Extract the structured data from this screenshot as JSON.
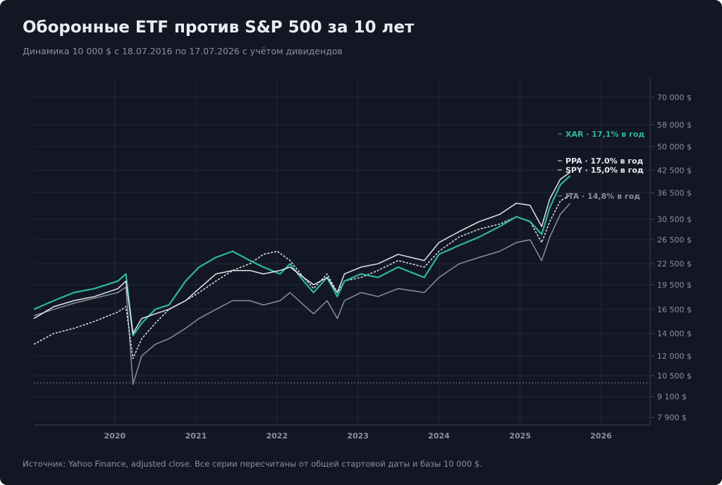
{
  "title": "Оборонные ETF против S&P 500 за 10 лет",
  "subtitle": "Динамика 10 000 $ с 18.07.2016 по 17.07.2026 с учётом дивидендов",
  "source": "Источник: Yahoo Finance, adjusted close. Все серии пересчитаны от общей стартовой даты и базы 10 000 $.",
  "chart_data": {
    "type": "line",
    "title": "Оборонные ETF против S&P 500 за 10 лет",
    "subtitle": "Динамика 10 000 $ с 18.07.2016 по 17.07.2026 с учётом дивидендов",
    "y_scale": "log",
    "ylim": [
      7500,
      80000
    ],
    "xlim": [
      "2019-01-01",
      "2026-08-10"
    ],
    "y_ticks": [
      7900,
      9100,
      10500,
      12000,
      14000,
      16500,
      19500,
      22500,
      26500,
      30500,
      36500,
      42500,
      50000,
      58000,
      70000
    ],
    "y_tick_labels": [
      "7 900 $",
      "9 100 $",
      "10 500 $",
      "12 000 $",
      "14 000 $",
      "16 500 $",
      "19 500 $",
      "22 500 $",
      "26 500 $",
      "30 500 $",
      "36 500 $",
      "42 500 $",
      "50 000 $",
      "58 000 $",
      "70 000 $"
    ],
    "x_ticks": [
      "2020-01-01",
      "2021-01-01",
      "2022-01-01",
      "2023-01-01",
      "2024-01-01",
      "2025-01-01",
      "2026-01-01"
    ],
    "x_tick_labels": [
      "2020",
      "2021",
      "2022",
      "2023",
      "2024",
      "2025",
      "2026"
    ],
    "grid": true,
    "reference_line": {
      "y": 10000,
      "style": "dotted"
    },
    "series": [
      {
        "name": "XAR",
        "label": "XAR · 17,1% в год",
        "color": "#2fb5a0",
        "style": "solid",
        "x": [
          "2019-01-01",
          "2019-04-01",
          "2019-07-01",
          "2019-10-01",
          "2020-01-15",
          "2020-02-20",
          "2020-03-23",
          "2020-05-01",
          "2020-07-01",
          "2020-09-01",
          "2020-11-15",
          "2021-01-15",
          "2021-04-01",
          "2021-06-15",
          "2021-09-01",
          "2021-11-01",
          "2022-01-15",
          "2022-03-01",
          "2022-05-01",
          "2022-06-15",
          "2022-08-15",
          "2022-09-30",
          "2022-11-01",
          "2023-01-15",
          "2023-04-01",
          "2023-07-01",
          "2023-10-27",
          "2024-01-01",
          "2024-04-01",
          "2024-07-01",
          "2024-10-01",
          "2024-12-15",
          "2025-02-15",
          "2025-04-08",
          "2025-05-15",
          "2025-07-01",
          "2025-08-15"
        ],
        "y": [
          16500,
          17500,
          18500,
          19000,
          20000,
          21000,
          13800,
          15000,
          16500,
          17000,
          20000,
          22000,
          23500,
          24500,
          23000,
          22000,
          21000,
          22500,
          20000,
          18500,
          20500,
          18000,
          20000,
          21000,
          20500,
          22000,
          20500,
          24000,
          25500,
          27000,
          29000,
          31000,
          30000,
          27500,
          33000,
          38500,
          41000
        ]
      },
      {
        "name": "PPA",
        "label": "PPA · 17.0% в год",
        "color": "#e4e7ee",
        "style": "solid",
        "x": [
          "2019-01-01",
          "2019-04-01",
          "2019-07-01",
          "2019-10-01",
          "2020-01-15",
          "2020-02-20",
          "2020-03-23",
          "2020-05-01",
          "2020-07-01",
          "2020-09-01",
          "2020-11-15",
          "2021-01-15",
          "2021-04-01",
          "2021-06-15",
          "2021-09-01",
          "2021-11-01",
          "2022-01-15",
          "2022-03-01",
          "2022-05-01",
          "2022-06-15",
          "2022-08-15",
          "2022-09-30",
          "2022-11-01",
          "2023-01-15",
          "2023-04-01",
          "2023-07-01",
          "2023-10-27",
          "2024-01-01",
          "2024-04-01",
          "2024-07-01",
          "2024-10-01",
          "2024-12-15",
          "2025-02-15",
          "2025-04-08",
          "2025-05-15",
          "2025-07-01",
          "2025-08-15"
        ],
        "y": [
          15500,
          16800,
          17500,
          18000,
          19000,
          20000,
          14000,
          15500,
          16000,
          16500,
          17500,
          19000,
          21000,
          21500,
          21500,
          21000,
          21500,
          22000,
          20500,
          19500,
          20500,
          18500,
          21000,
          22000,
          22500,
          24000,
          23000,
          26000,
          28000,
          30000,
          31500,
          34000,
          33500,
          29000,
          35000,
          40000,
          42000
        ]
      },
      {
        "name": "SPY",
        "label": "SPY · 15,0% в год",
        "color": "#e4e7ee",
        "style": "dashed",
        "x": [
          "2019-01-01",
          "2019-04-01",
          "2019-07-01",
          "2019-10-01",
          "2020-01-15",
          "2020-02-20",
          "2020-03-23",
          "2020-05-01",
          "2020-07-01",
          "2020-09-01",
          "2020-11-15",
          "2021-01-15",
          "2021-04-01",
          "2021-06-15",
          "2021-09-01",
          "2021-11-01",
          "2022-01-03",
          "2022-03-01",
          "2022-05-01",
          "2022-06-15",
          "2022-08-15",
          "2022-09-30",
          "2022-11-01",
          "2023-01-15",
          "2023-04-01",
          "2023-07-01",
          "2023-10-27",
          "2024-01-01",
          "2024-04-01",
          "2024-07-01",
          "2024-10-01",
          "2024-12-15",
          "2025-02-15",
          "2025-04-08",
          "2025-05-15",
          "2025-07-01",
          "2025-08-15"
        ],
        "y": [
          13000,
          14000,
          14500,
          15200,
          16200,
          16800,
          11800,
          13500,
          15000,
          16500,
          17500,
          18500,
          20000,
          21500,
          22500,
          24000,
          24500,
          23000,
          20500,
          19000,
          21000,
          18500,
          20000,
          20500,
          21500,
          23000,
          22000,
          24500,
          27000,
          28500,
          29500,
          31000,
          30000,
          26000,
          30000,
          34500,
          36000
        ]
      },
      {
        "name": "ITA",
        "label": "ITA · 14,8% в год",
        "color": "#8b8f9a",
        "style": "solid",
        "x": [
          "2019-01-01",
          "2019-04-01",
          "2019-07-01",
          "2019-10-01",
          "2020-01-15",
          "2020-02-20",
          "2020-03-23",
          "2020-05-01",
          "2020-07-01",
          "2020-09-01",
          "2020-11-15",
          "2021-01-15",
          "2021-04-01",
          "2021-06-15",
          "2021-09-01",
          "2021-11-01",
          "2022-01-15",
          "2022-03-01",
          "2022-05-01",
          "2022-06-15",
          "2022-08-15",
          "2022-09-30",
          "2022-11-01",
          "2023-01-15",
          "2023-04-01",
          "2023-07-01",
          "2023-10-27",
          "2024-01-01",
          "2024-04-01",
          "2024-07-01",
          "2024-10-01",
          "2024-12-15",
          "2025-02-15",
          "2025-04-08",
          "2025-05-15",
          "2025-07-01",
          "2025-08-15"
        ],
        "y": [
          15800,
          16500,
          17200,
          17800,
          18500,
          19200,
          9900,
          12000,
          13000,
          13500,
          14500,
          15500,
          16500,
          17500,
          17500,
          17000,
          17500,
          18500,
          17000,
          16000,
          17500,
          15500,
          17500,
          18500,
          18000,
          19000,
          18500,
          20500,
          22500,
          23500,
          24500,
          26000,
          26500,
          23000,
          27000,
          31500,
          34000
        ]
      }
    ]
  }
}
